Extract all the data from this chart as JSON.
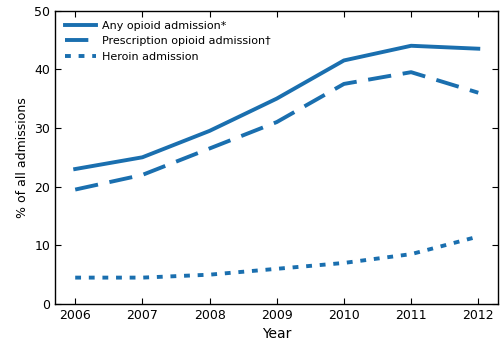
{
  "years": [
    2006,
    2007,
    2008,
    2009,
    2010,
    2011,
    2012
  ],
  "any_opioid": [
    23.0,
    25.0,
    29.5,
    35.0,
    41.5,
    44.0,
    43.5
  ],
  "prescription_opioid": [
    19.5,
    22.0,
    26.5,
    31.0,
    37.5,
    39.5,
    36.0
  ],
  "heroin": [
    4.5,
    4.5,
    5.0,
    6.0,
    7.0,
    8.5,
    11.5
  ],
  "line_color": "#1a6faf",
  "ylabel": "% of all admissions",
  "xlabel": "Year",
  "ylim": [
    0,
    50
  ],
  "yticks": [
    0,
    10,
    20,
    30,
    40,
    50
  ],
  "legend_labels": [
    "Any opioid admission*",
    "Prescription opioid admission†",
    "Heroin admission"
  ],
  "linewidth_solid": 2.8,
  "linewidth_dashed": 2.8,
  "linewidth_dotted": 2.8,
  "figsize": [
    5.04,
    3.47
  ],
  "dpi": 100
}
